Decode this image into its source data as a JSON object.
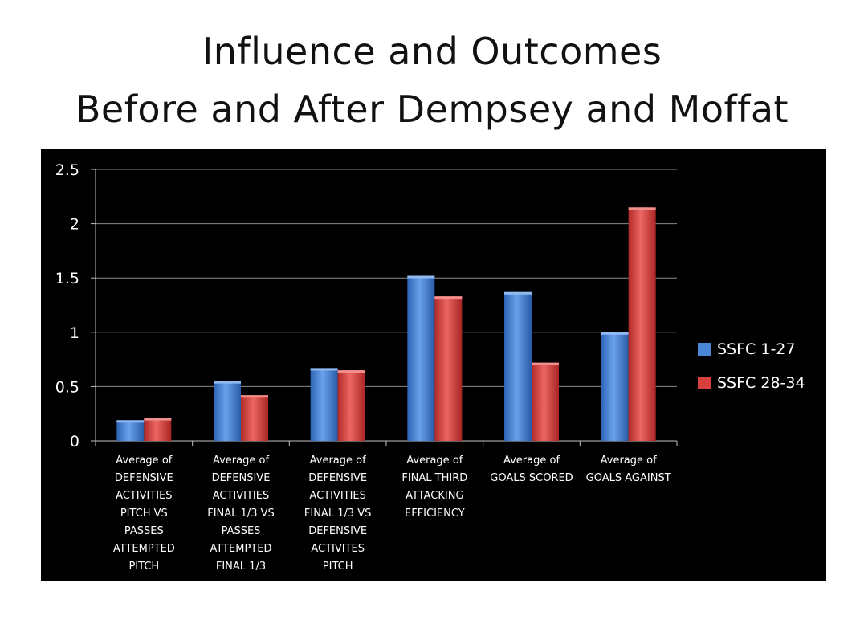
{
  "title_line1": "Influence and Outcomes",
  "title_line2": "Before and After Dempsey and Moffat",
  "chart_data": {
    "type": "bar",
    "categories": [
      [
        "Average of",
        "DEFENSIVE",
        "ACTIVITIES",
        "PITCH VS",
        "PASSES",
        "ATTEMPTED",
        "PITCH"
      ],
      [
        "Average of",
        "DEFENSIVE",
        "ACTIVITIES",
        "FINAL 1/3 VS",
        "PASSES",
        "ATTEMPTED",
        "FINAL 1/3"
      ],
      [
        "Average of",
        "DEFENSIVE",
        "ACTIVITIES",
        "FINAL 1/3 VS",
        "DEFENSIVE",
        "ACTIVITES",
        "PITCH"
      ],
      [
        "Average of",
        "FINAL THIRD",
        "ATTACKING",
        "EFFICIENCY"
      ],
      [
        "Average of",
        "GOALS SCORED"
      ],
      [
        "Average of",
        "GOALS AGAINST"
      ]
    ],
    "series": [
      {
        "name": "SSFC 1-27",
        "color": "#4a86d6",
        "values": [
          0.19,
          0.55,
          0.67,
          1.52,
          1.37,
          1.0
        ]
      },
      {
        "name": "SSFC 28-34",
        "color": "#d9403d",
        "values": [
          0.21,
          0.42,
          0.65,
          1.33,
          0.72,
          2.15
        ]
      }
    ],
    "ylim": [
      0,
      2.5
    ],
    "yticks": [
      "0",
      "0.5",
      "1",
      "1.5",
      "2",
      "2.5"
    ],
    "grid": true,
    "legend": "right",
    "background": "#000000"
  }
}
